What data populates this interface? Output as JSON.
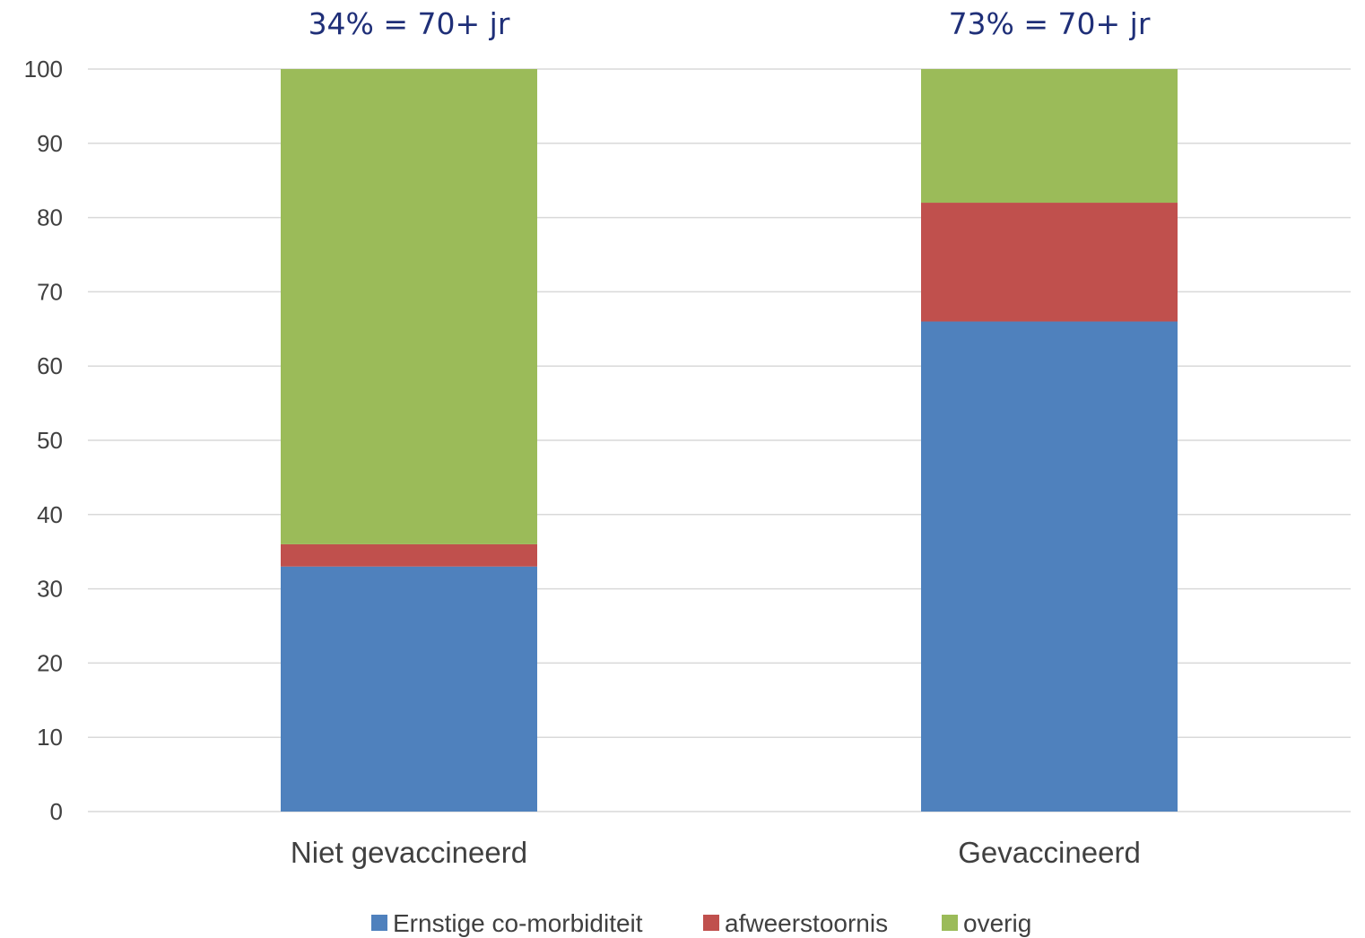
{
  "chart_data": {
    "type": "bar",
    "stacked": true,
    "categories": [
      "Niet gevaccineerd",
      "Gevaccineerd"
    ],
    "annotations": [
      "34% = 70+ jr",
      "73% = 70+ jr"
    ],
    "series": [
      {
        "name": "Ernstige co-morbiditeit",
        "values": [
          33,
          66
        ],
        "color": "#4f81bd"
      },
      {
        "name": "afweerstoornis",
        "values": [
          3,
          16
        ],
        "color": "#c0504d"
      },
      {
        "name": "overig",
        "values": [
          64,
          18
        ],
        "color": "#9bbb59"
      }
    ],
    "ylim": [
      0,
      100
    ],
    "yticks": [
      0,
      10,
      20,
      30,
      40,
      50,
      60,
      70,
      80,
      90,
      100
    ],
    "grid": true,
    "legend_position": "bottom-center"
  }
}
